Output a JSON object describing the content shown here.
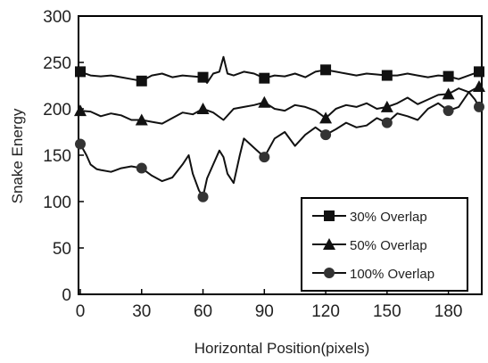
{
  "chart_data": {
    "type": "line",
    "title": "",
    "xlabel": "Horizontal Position(pixels)",
    "ylabel": "Snake Energy",
    "xlim": [
      0,
      195
    ],
    "ylim": [
      0,
      300
    ],
    "x_ticks": [
      0,
      30,
      60,
      90,
      120,
      150,
      180
    ],
    "y_ticks": [
      0,
      50,
      100,
      150,
      200,
      250,
      300
    ],
    "grid": false,
    "legend_position": "bottom-right",
    "series": [
      {
        "name": "30% Overlap",
        "marker": "square",
        "x": [
          0,
          5,
          10,
          15,
          20,
          25,
          30,
          35,
          40,
          45,
          50,
          55,
          60,
          62,
          65,
          68,
          70,
          72,
          75,
          80,
          85,
          90,
          95,
          100,
          105,
          110,
          115,
          120,
          125,
          130,
          135,
          140,
          145,
          150,
          155,
          160,
          165,
          170,
          175,
          180,
          185,
          190,
          195
        ],
        "y": [
          240,
          236,
          235,
          236,
          234,
          232,
          230,
          236,
          238,
          234,
          236,
          235,
          234,
          228,
          238,
          240,
          256,
          238,
          236,
          240,
          238,
          233,
          236,
          235,
          238,
          234,
          240,
          242,
          240,
          238,
          236,
          238,
          237,
          236,
          236,
          238,
          236,
          234,
          236,
          235,
          232,
          236,
          240
        ]
      },
      {
        "name": "50% Overlap",
        "marker": "triangle",
        "x": [
          0,
          5,
          10,
          15,
          20,
          25,
          30,
          35,
          40,
          45,
          50,
          55,
          60,
          65,
          70,
          75,
          80,
          85,
          90,
          95,
          100,
          105,
          110,
          115,
          120,
          125,
          130,
          135,
          140,
          145,
          150,
          155,
          160,
          165,
          170,
          175,
          180,
          185,
          190,
          195
        ],
        "y": [
          198,
          197,
          192,
          195,
          193,
          188,
          188,
          186,
          184,
          190,
          196,
          194,
          200,
          196,
          188,
          200,
          202,
          204,
          207,
          200,
          198,
          204,
          202,
          198,
          190,
          200,
          204,
          202,
          206,
          200,
          202,
          206,
          212,
          205,
          210,
          215,
          216,
          222,
          218,
          224
        ]
      },
      {
        "name": "100% Overlap",
        "marker": "circle",
        "x": [
          0,
          3,
          5,
          8,
          10,
          15,
          20,
          25,
          30,
          35,
          40,
          45,
          50,
          53,
          55,
          58,
          60,
          62,
          65,
          68,
          70,
          72,
          75,
          78,
          80,
          85,
          90,
          95,
          100,
          105,
          110,
          115,
          120,
          125,
          130,
          135,
          140,
          145,
          150,
          155,
          160,
          165,
          170,
          175,
          180,
          185,
          190,
          193,
          195
        ],
        "y": [
          162,
          150,
          140,
          135,
          134,
          132,
          136,
          138,
          136,
          128,
          122,
          126,
          140,
          150,
          130,
          112,
          105,
          125,
          140,
          155,
          148,
          130,
          120,
          150,
          168,
          158,
          148,
          168,
          175,
          160,
          172,
          180,
          172,
          178,
          185,
          180,
          182,
          190,
          185,
          195,
          192,
          188,
          200,
          206,
          198,
          202,
          218,
          210,
          202
        ]
      }
    ]
  }
}
